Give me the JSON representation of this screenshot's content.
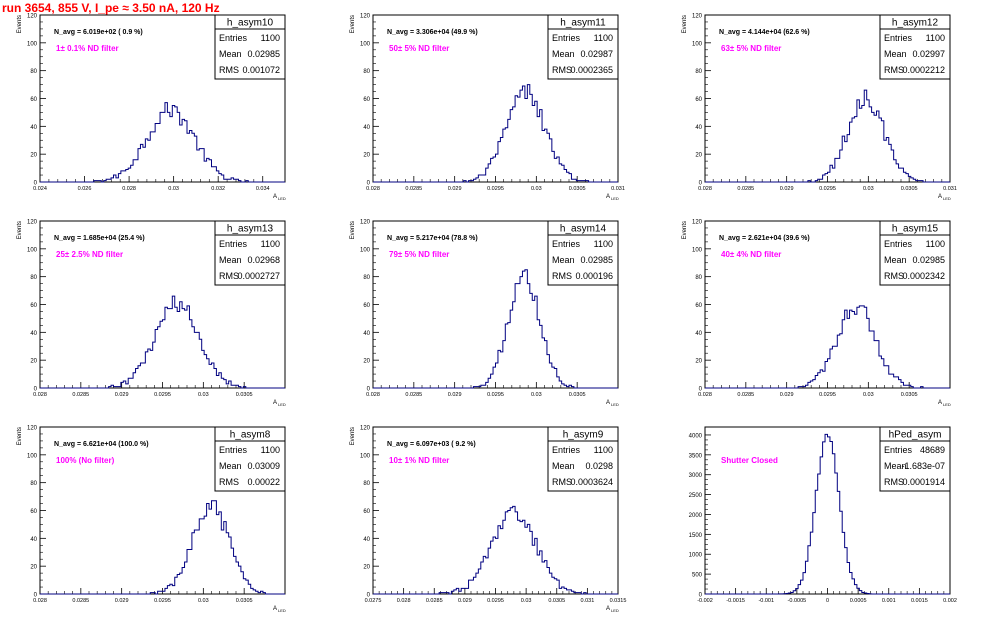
{
  "header": {
    "run_title": "run 3654,   855 V, I_pe ≈ 3.50 nA, 120 Hz"
  },
  "colors": {
    "histogram": "#000080",
    "filter_label": "#ff00ff",
    "run_title": "#ff0000",
    "frame": "#000000"
  },
  "chart_data": [
    {
      "type": "histogram",
      "stat_title": "h_asym10",
      "nav_label": "N_avg = 6.019e+02 ( 0.9 %)",
      "filter_label": "1± 0.1% ND filter",
      "stats": [
        [
          "Entries",
          "1100"
        ],
        [
          "Mean",
          "0.02985"
        ],
        [
          "RMS",
          "0.001072"
        ]
      ],
      "ylabel": "Events",
      "xlabel": "A",
      "xlabel_sub": "LED",
      "xlim": [
        0.024,
        0.035
      ],
      "ylim": [
        0,
        120
      ],
      "x_ticks": [
        0.024,
        0.026,
        0.028,
        0.03,
        0.032,
        0.034
      ],
      "x_tick_labels": [
        "0.024",
        "0.026",
        "0.028",
        "0.03",
        "0.032",
        "0.034"
      ],
      "y_ticks": [
        0,
        20,
        40,
        60,
        80,
        100,
        120
      ],
      "mean": 0.02985,
      "rms": 0.001072,
      "peak": 52
    },
    {
      "type": "histogram",
      "stat_title": "h_asym11",
      "nav_label": "N_avg = 3.306e+04 (49.9 %)",
      "filter_label": "50± 5% ND filter",
      "stats": [
        [
          "Entries",
          "1100"
        ],
        [
          "Mean",
          "0.02987"
        ],
        [
          "RMS",
          "0.0002365"
        ]
      ],
      "ylabel": "Events",
      "xlabel": "A",
      "xlabel_sub": "LED",
      "xlim": [
        0.028,
        0.031
      ],
      "ylim": [
        0,
        120
      ],
      "x_ticks": [
        0.028,
        0.0285,
        0.029,
        0.0295,
        0.03,
        0.0305,
        0.031
      ],
      "x_tick_labels": [
        "0.028",
        "0.0285",
        "0.029",
        "0.0295",
        "0.03",
        "0.0305",
        "0.031"
      ],
      "y_ticks": [
        0,
        20,
        40,
        60,
        80,
        100,
        120
      ],
      "mean": 0.02987,
      "rms": 0.0002365,
      "peak": 64
    },
    {
      "type": "histogram",
      "stat_title": "h_asym12",
      "nav_label": "N_avg = 4.144e+04 (62.6 %)",
      "filter_label": "63± 5% ND filter",
      "stats": [
        [
          "Entries",
          "1100"
        ],
        [
          "Mean",
          "0.02997"
        ],
        [
          "RMS",
          "0.0002212"
        ]
      ],
      "ylabel": "Events",
      "xlabel": "A",
      "xlabel_sub": "LED",
      "xlim": [
        0.028,
        0.031
      ],
      "ylim": [
        0,
        120
      ],
      "x_ticks": [
        0.028,
        0.0285,
        0.029,
        0.0295,
        0.03,
        0.0305,
        0.031
      ],
      "x_tick_labels": [
        "0.028",
        "0.0285",
        "0.029",
        "0.0295",
        "0.03",
        "0.0305",
        "0.031"
      ],
      "y_ticks": [
        0,
        20,
        40,
        60,
        80,
        100,
        120
      ],
      "mean": 0.02997,
      "rms": 0.0002212,
      "peak": 61
    },
    {
      "type": "histogram",
      "stat_title": "h_asym13",
      "nav_label": "N_avg = 1.685e+04 (25.4 %)",
      "filter_label": "25± 2.5% ND filter",
      "stats": [
        [
          "Entries",
          "1100"
        ],
        [
          "Mean",
          "0.02968"
        ],
        [
          "RMS",
          "0.0002727"
        ]
      ],
      "ylabel": "Events",
      "xlabel": "A",
      "xlabel_sub": "LED",
      "xlim": [
        0.028,
        0.031
      ],
      "ylim": [
        0,
        120
      ],
      "x_ticks": [
        0.028,
        0.0285,
        0.029,
        0.0295,
        0.03,
        0.0305
      ],
      "x_tick_labels": [
        "0.028",
        "0.0285",
        "0.029",
        "0.0295",
        "0.03",
        "0.0305"
      ],
      "y_ticks": [
        0,
        20,
        40,
        60,
        80,
        100,
        120
      ],
      "mean": 0.02968,
      "rms": 0.0002727,
      "peak": 60
    },
    {
      "type": "histogram",
      "stat_title": "h_asym14",
      "nav_label": "N_avg = 5.217e+04 (78.8 %)",
      "filter_label": "79± 5% ND filter",
      "stats": [
        [
          "Entries",
          "1100"
        ],
        [
          "Mean",
          "0.02985"
        ],
        [
          "RMS",
          "0.000196"
        ]
      ],
      "ylabel": "Events",
      "xlabel": "A",
      "xlabel_sub": "LED",
      "xlim": [
        0.028,
        0.031
      ],
      "ylim": [
        0,
        120
      ],
      "x_ticks": [
        0.028,
        0.0285,
        0.029,
        0.0295,
        0.03,
        0.0305
      ],
      "x_tick_labels": [
        "0.028",
        "0.0285",
        "0.029",
        "0.0295",
        "0.03",
        "0.0305"
      ],
      "y_ticks": [
        0,
        20,
        40,
        60,
        80,
        100,
        120
      ],
      "mean": 0.02985,
      "rms": 0.000196,
      "peak": 80
    },
    {
      "type": "histogram",
      "stat_title": "h_asym15",
      "nav_label": "N_avg = 2.621e+04 (39.6 %)",
      "filter_label": "40± 4% ND filter",
      "stats": [
        [
          "Entries",
          "1100"
        ],
        [
          "Mean",
          "0.02985"
        ],
        [
          "RMS",
          "0.0002342"
        ]
      ],
      "ylabel": "Events",
      "xlabel": "A",
      "xlabel_sub": "LED",
      "xlim": [
        0.028,
        0.031
      ],
      "ylim": [
        0,
        120
      ],
      "x_ticks": [
        0.028,
        0.0285,
        0.029,
        0.0295,
        0.03,
        0.0305
      ],
      "x_tick_labels": [
        "0.028",
        "0.0285",
        "0.029",
        "0.0295",
        "0.03",
        "0.0305"
      ],
      "y_ticks": [
        0,
        20,
        40,
        60,
        80,
        100,
        120
      ],
      "mean": 0.02985,
      "rms": 0.0002342,
      "peak": 60
    },
    {
      "type": "histogram",
      "stat_title": "h_asym8",
      "nav_label": "N_avg = 6.621e+04 (100.0 %)",
      "filter_label": "100% (No filter)",
      "stats": [
        [
          "Entries",
          "1100"
        ],
        [
          "Mean",
          "0.03009"
        ],
        [
          "RMS",
          "0.00022"
        ]
      ],
      "ylabel": "Events",
      "xlabel": "A",
      "xlabel_sub": "LED",
      "xlim": [
        0.028,
        0.031
      ],
      "ylim": [
        0,
        120
      ],
      "x_ticks": [
        0.028,
        0.0285,
        0.029,
        0.0295,
        0.03,
        0.0305
      ],
      "x_tick_labels": [
        "0.028",
        "0.0285",
        "0.029",
        "0.0295",
        "0.03",
        "0.0305"
      ],
      "y_ticks": [
        0,
        20,
        40,
        60,
        80,
        100,
        120
      ],
      "mean": 0.03009,
      "rms": 0.00022,
      "peak": 63
    },
    {
      "type": "histogram",
      "stat_title": "h_asym9",
      "nav_label": "N_avg = 6.097e+03 ( 9.2 %)",
      "filter_label": "10± 1% ND filter",
      "stats": [
        [
          "Entries",
          "1100"
        ],
        [
          "Mean",
          "0.0298"
        ],
        [
          "RMS",
          "0.0003624"
        ]
      ],
      "ylabel": "Events",
      "xlabel": "A",
      "xlabel_sub": "LED",
      "xlim": [
        0.0275,
        0.0315
      ],
      "ylim": [
        0,
        120
      ],
      "x_ticks": [
        0.0275,
        0.028,
        0.0285,
        0.029,
        0.0295,
        0.03,
        0.0305,
        0.031,
        0.0315
      ],
      "x_tick_labels": [
        "0.0275",
        "0.028",
        "0.0285",
        "0.029",
        "0.0295",
        "0.03",
        "0.0305",
        "0.031",
        "0.0315"
      ],
      "y_ticks": [
        0,
        20,
        40,
        60,
        80,
        100,
        120
      ],
      "mean": 0.0298,
      "rms": 0.0003624,
      "peak": 57
    },
    {
      "type": "histogram",
      "stat_title": "hPed_asym",
      "nav_label": "",
      "filter_label": "Shutter Closed",
      "stats": [
        [
          "Entries",
          "48689"
        ],
        [
          "Mean",
          "-1.683e-07"
        ],
        [
          "RMS",
          "0.0001914"
        ]
      ],
      "ylabel": "",
      "xlabel": "",
      "xlabel_sub": "",
      "xlim": [
        -0.002,
        0.002
      ],
      "ylim": [
        0,
        4200
      ],
      "x_ticks": [
        -0.002,
        -0.0015,
        -0.001,
        -0.0005,
        0,
        0.0005,
        0.001,
        0.0015,
        0.002
      ],
      "x_tick_labels": [
        "-0.002",
        "-0.0015",
        "-0.001",
        "-0.0005",
        "0",
        "0.0005",
        "0.001",
        "0.0015",
        "0.002"
      ],
      "y_ticks": [
        0,
        500,
        1000,
        1500,
        2000,
        2500,
        3000,
        3500,
        4000
      ],
      "mean": -1.683e-07,
      "rms": 0.0001914,
      "peak": 4000
    }
  ]
}
